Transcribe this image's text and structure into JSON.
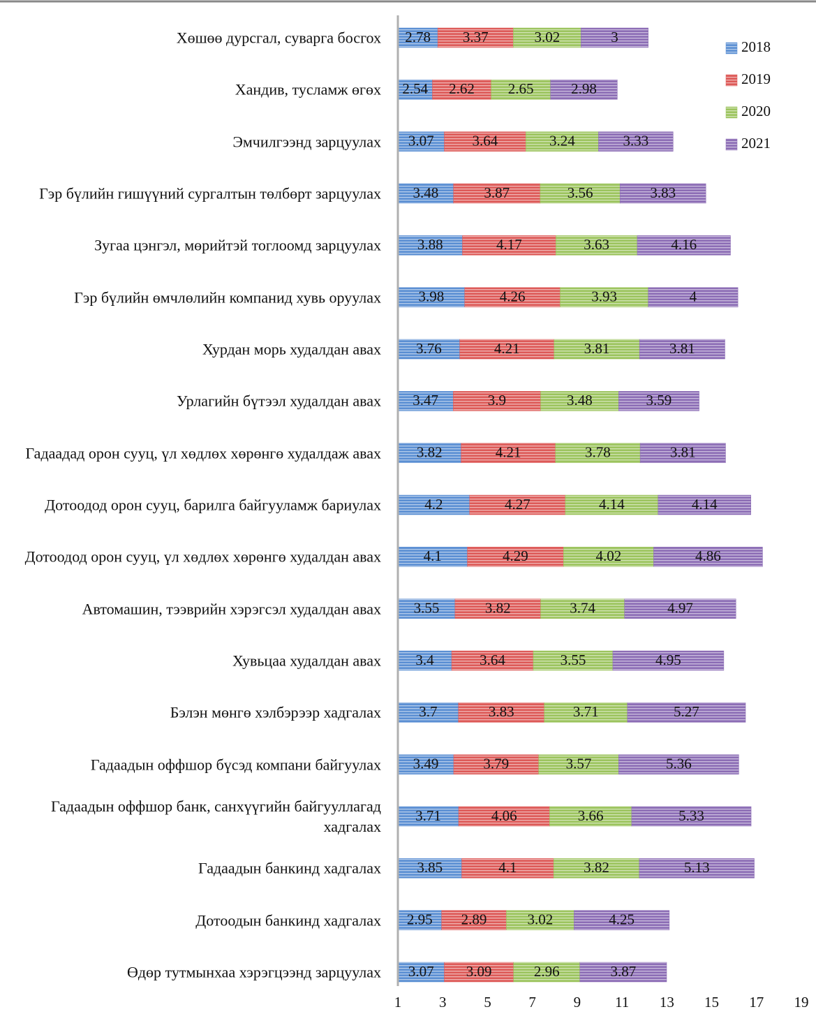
{
  "chart_data": {
    "type": "stacked-bar-horizontal",
    "categories": [
      "Хөшөө дурсгал, суварга босгох",
      "Хандив, тусламж өгөх",
      "Эмчилгээнд зарцуулах",
      "Гэр бүлийн гишүүний сургалтын төлбөрт зарцуулах",
      "Зугаа цэнгэл, мөрийтэй тоглоомд зарцуулах",
      "Гэр бүлийн өмчлөлийн компанид хувь оруулах",
      "Хурдан морь худалдан авах",
      "Урлагийн бүтээл худалдан авах",
      "Гадаадад орон сууц, үл хөдлөх хөрөнгө худалдаж авах",
      "Дотоодод орон сууц, барилга байгууламж бариулах",
      "Дотоодод орон сууц, үл хөдлөх хөрөнгө худалдан авах",
      "Автомашин, тээврийн хэрэгсэл худалдан авах",
      "Хувьцаа худалдан авах",
      "Бэлэн мөнгө хэлбэрээр хадгалах",
      "Гадаадын оффшор бүсэд компани байгуулах",
      "Гадаадын оффшор банк, санхүүгийн байгууллагад хадгалах",
      "Гадаадын банкинд хадгалах",
      "Дотоодын банкинд хадгалах",
      "Өдөр тутмынхаа хэрэгцээнд зарцуулах"
    ],
    "series": [
      {
        "name": "2018",
        "color": "#5b8fd3",
        "values": [
          2.78,
          2.54,
          3.07,
          3.48,
          3.88,
          3.98,
          3.76,
          3.47,
          3.82,
          4.2,
          4.1,
          3.55,
          3.4,
          3.7,
          3.49,
          3.71,
          3.85,
          2.95,
          3.07
        ]
      },
      {
        "name": "2019",
        "color": "#dd5a58",
        "values": [
          3.37,
          2.62,
          3.64,
          3.87,
          4.17,
          4.26,
          4.21,
          3.9,
          4.21,
          4.27,
          4.29,
          3.82,
          3.64,
          3.83,
          3.79,
          4.06,
          4.1,
          2.89,
          3.09
        ]
      },
      {
        "name": "2020",
        "color": "#9cc45e",
        "values": [
          3.02,
          2.65,
          3.24,
          3.56,
          3.63,
          3.93,
          3.81,
          3.48,
          3.78,
          4.14,
          4.02,
          3.74,
          3.55,
          3.71,
          3.57,
          3.66,
          3.82,
          3.02,
          2.96
        ]
      },
      {
        "name": "2021",
        "color": "#8c6db5",
        "values": [
          3,
          2.98,
          3.33,
          3.83,
          4.16,
          4,
          3.81,
          3.59,
          3.81,
          4.14,
          4.86,
          4.97,
          4.95,
          5.27,
          5.36,
          5.33,
          5.13,
          4.25,
          3.87
        ]
      }
    ],
    "xlim": [
      1,
      19
    ],
    "xticks": [
      1,
      3,
      5,
      7,
      9,
      11,
      13,
      15,
      17,
      19
    ],
    "legend": "top-right"
  }
}
